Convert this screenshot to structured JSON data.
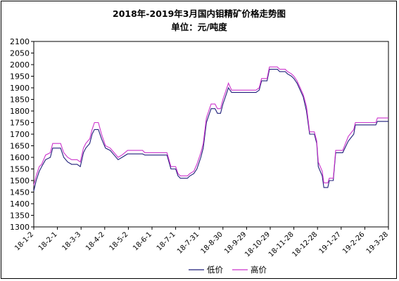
{
  "chart_data": {
    "type": "line",
    "title": "2018年-2019年3月国内钼精矿价格走势图",
    "subtitle": "单位：元/吨度",
    "xlabel": "",
    "ylabel": "",
    "ylim": [
      1300,
      2100
    ],
    "yticks": [
      1300,
      1350,
      1400,
      1450,
      1500,
      1550,
      1600,
      1650,
      1700,
      1750,
      1800,
      1850,
      1900,
      1950,
      2000,
      2050,
      2100
    ],
    "x_tick_labels": [
      "18-1-2",
      "18-2-1",
      "18-3-3",
      "18-4-2",
      "18-5-2",
      "18-6-1",
      "18-7-1",
      "18-7-31",
      "18-8-30",
      "18-9-29",
      "18-10-29",
      "18-11-28",
      "18-12-28",
      "19-1-27",
      "19-2-26",
      "19-3-28"
    ],
    "x_range": [
      "2018-01-02",
      "2019-03-28"
    ],
    "grid": false,
    "legend_position": "bottom-right",
    "series": [
      {
        "name": "低价",
        "color": "#1f1f7a",
        "points": [
          [
            "2018-01-02",
            1455
          ],
          [
            "2018-01-05",
            1500
          ],
          [
            "2018-01-09",
            1540
          ],
          [
            "2018-01-12",
            1560
          ],
          [
            "2018-01-17",
            1590
          ],
          [
            "2018-01-23",
            1600
          ],
          [
            "2018-01-26",
            1640
          ],
          [
            "2018-02-05",
            1640
          ],
          [
            "2018-02-09",
            1600
          ],
          [
            "2018-02-14",
            1580
          ],
          [
            "2018-02-19",
            1570
          ],
          [
            "2018-02-26",
            1570
          ],
          [
            "2018-03-02",
            1560
          ],
          [
            "2018-03-06",
            1620
          ],
          [
            "2018-03-09",
            1640
          ],
          [
            "2018-03-14",
            1660
          ],
          [
            "2018-03-17",
            1700
          ],
          [
            "2018-03-20",
            1720
          ],
          [
            "2018-03-25",
            1720
          ],
          [
            "2018-03-29",
            1680
          ],
          [
            "2018-04-03",
            1640
          ],
          [
            "2018-04-09",
            1630
          ],
          [
            "2018-04-14",
            1610
          ],
          [
            "2018-04-19",
            1590
          ],
          [
            "2018-04-24",
            1600
          ],
          [
            "2018-05-01",
            1615
          ],
          [
            "2018-05-20",
            1615
          ],
          [
            "2018-05-23",
            1610
          ],
          [
            "2018-06-20",
            1610
          ],
          [
            "2018-06-25",
            1550
          ],
          [
            "2018-07-01",
            1550
          ],
          [
            "2018-07-04",
            1520
          ],
          [
            "2018-07-07",
            1510
          ],
          [
            "2018-07-16",
            1510
          ],
          [
            "2018-07-19",
            1520
          ],
          [
            "2018-07-24",
            1530
          ],
          [
            "2018-07-28",
            1550
          ],
          [
            "2018-08-02",
            1600
          ],
          [
            "2018-08-05",
            1640
          ],
          [
            "2018-08-09",
            1750
          ],
          [
            "2018-08-12",
            1780
          ],
          [
            "2018-08-15",
            1810
          ],
          [
            "2018-08-20",
            1810
          ],
          [
            "2018-08-23",
            1790
          ],
          [
            "2018-08-27",
            1790
          ],
          [
            "2018-08-30",
            1830
          ],
          [
            "2018-09-03",
            1870
          ],
          [
            "2018-09-06",
            1900
          ],
          [
            "2018-09-10",
            1880
          ],
          [
            "2018-09-16",
            1880
          ],
          [
            "2018-10-11",
            1880
          ],
          [
            "2018-10-15",
            1890
          ],
          [
            "2018-10-18",
            1930
          ],
          [
            "2018-10-25",
            1930
          ],
          [
            "2018-10-28",
            1980
          ],
          [
            "2018-11-07",
            1980
          ],
          [
            "2018-11-10",
            1970
          ],
          [
            "2018-11-17",
            1970
          ],
          [
            "2018-11-20",
            1960
          ],
          [
            "2018-11-25",
            1950
          ],
          [
            "2018-11-28",
            1940
          ],
          [
            "2018-12-02",
            1920
          ],
          [
            "2018-12-06",
            1890
          ],
          [
            "2018-12-10",
            1860
          ],
          [
            "2018-12-14",
            1800
          ],
          [
            "2018-12-18",
            1700
          ],
          [
            "2018-12-24",
            1700
          ],
          [
            "2018-12-27",
            1660
          ],
          [
            "2018-12-29",
            1560
          ],
          [
            "2019-01-03",
            1520
          ],
          [
            "2019-01-05",
            1470
          ],
          [
            "2019-01-10",
            1470
          ],
          [
            "2019-01-12",
            1500
          ],
          [
            "2019-01-17",
            1500
          ],
          [
            "2019-01-20",
            1620
          ],
          [
            "2019-01-29",
            1620
          ],
          [
            "2019-02-05",
            1670
          ],
          [
            "2019-02-12",
            1700
          ],
          [
            "2019-02-14",
            1740
          ],
          [
            "2019-03-12",
            1740
          ],
          [
            "2019-03-14",
            1755
          ],
          [
            "2019-03-28",
            1755
          ]
        ]
      },
      {
        "name": "高价",
        "color": "#cc33cc",
        "points": [
          [
            "2018-01-02",
            1480
          ],
          [
            "2018-01-05",
            1520
          ],
          [
            "2018-01-09",
            1560
          ],
          [
            "2018-01-12",
            1570
          ],
          [
            "2018-01-17",
            1610
          ],
          [
            "2018-01-23",
            1620
          ],
          [
            "2018-01-26",
            1660
          ],
          [
            "2018-02-05",
            1660
          ],
          [
            "2018-02-09",
            1620
          ],
          [
            "2018-02-14",
            1600
          ],
          [
            "2018-02-19",
            1590
          ],
          [
            "2018-02-26",
            1590
          ],
          [
            "2018-03-02",
            1580
          ],
          [
            "2018-03-06",
            1640
          ],
          [
            "2018-03-09",
            1660
          ],
          [
            "2018-03-14",
            1680
          ],
          [
            "2018-03-17",
            1720
          ],
          [
            "2018-03-20",
            1750
          ],
          [
            "2018-03-25",
            1750
          ],
          [
            "2018-03-29",
            1700
          ],
          [
            "2018-04-03",
            1650
          ],
          [
            "2018-04-09",
            1640
          ],
          [
            "2018-04-14",
            1620
          ],
          [
            "2018-04-19",
            1600
          ],
          [
            "2018-04-24",
            1610
          ],
          [
            "2018-05-01",
            1630
          ],
          [
            "2018-05-20",
            1630
          ],
          [
            "2018-05-23",
            1620
          ],
          [
            "2018-06-20",
            1620
          ],
          [
            "2018-06-25",
            1560
          ],
          [
            "2018-07-01",
            1560
          ],
          [
            "2018-07-04",
            1530
          ],
          [
            "2018-07-07",
            1520
          ],
          [
            "2018-07-16",
            1520
          ],
          [
            "2018-07-19",
            1530
          ],
          [
            "2018-07-24",
            1540
          ],
          [
            "2018-07-28",
            1570
          ],
          [
            "2018-08-02",
            1620
          ],
          [
            "2018-08-05",
            1660
          ],
          [
            "2018-08-09",
            1770
          ],
          [
            "2018-08-12",
            1800
          ],
          [
            "2018-08-15",
            1830
          ],
          [
            "2018-08-20",
            1830
          ],
          [
            "2018-08-23",
            1810
          ],
          [
            "2018-08-27",
            1810
          ],
          [
            "2018-08-30",
            1850
          ],
          [
            "2018-09-03",
            1890
          ],
          [
            "2018-09-06",
            1920
          ],
          [
            "2018-09-10",
            1890
          ],
          [
            "2018-09-16",
            1890
          ],
          [
            "2018-10-11",
            1890
          ],
          [
            "2018-10-15",
            1900
          ],
          [
            "2018-10-18",
            1940
          ],
          [
            "2018-10-25",
            1940
          ],
          [
            "2018-10-28",
            1990
          ],
          [
            "2018-11-07",
            1990
          ],
          [
            "2018-11-10",
            1980
          ],
          [
            "2018-11-17",
            1980
          ],
          [
            "2018-11-20",
            1970
          ],
          [
            "2018-11-25",
            1960
          ],
          [
            "2018-11-28",
            1950
          ],
          [
            "2018-12-02",
            1930
          ],
          [
            "2018-12-06",
            1900
          ],
          [
            "2018-12-10",
            1870
          ],
          [
            "2018-12-14",
            1820
          ],
          [
            "2018-12-18",
            1710
          ],
          [
            "2018-12-24",
            1710
          ],
          [
            "2018-12-27",
            1670
          ],
          [
            "2018-12-29",
            1580
          ],
          [
            "2019-01-03",
            1540
          ],
          [
            "2019-01-05",
            1490
          ],
          [
            "2019-01-10",
            1490
          ],
          [
            "2019-01-12",
            1510
          ],
          [
            "2019-01-17",
            1510
          ],
          [
            "2019-01-20",
            1630
          ],
          [
            "2019-01-29",
            1630
          ],
          [
            "2019-02-05",
            1690
          ],
          [
            "2019-02-12",
            1720
          ],
          [
            "2019-02-14",
            1750
          ],
          [
            "2019-03-12",
            1750
          ],
          [
            "2019-03-14",
            1770
          ],
          [
            "2019-03-28",
            1770
          ]
        ]
      }
    ]
  }
}
